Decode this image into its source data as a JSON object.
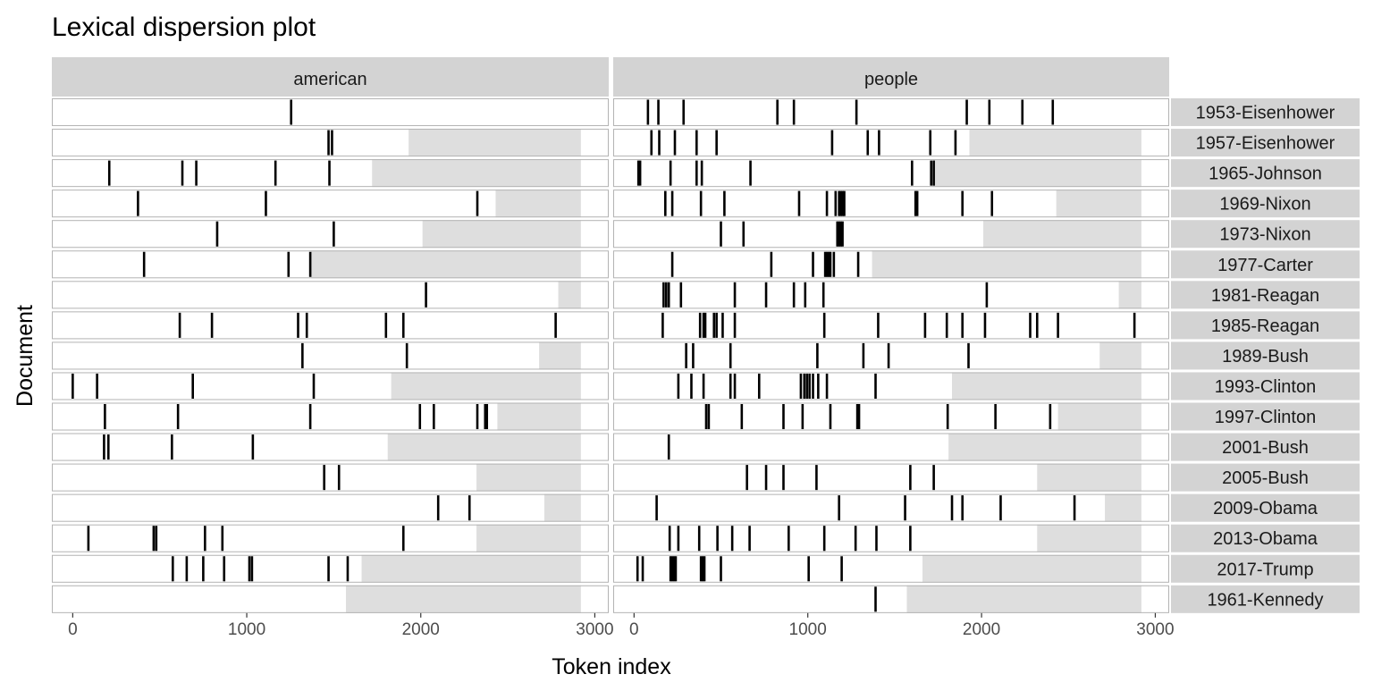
{
  "chart_data": {
    "type": "scatter",
    "title": "Lexical dispersion plot",
    "xlabel": "Token index",
    "ylabel": "Document",
    "xlim": [
      -120,
      3080
    ],
    "x_ticks": [
      0,
      1000,
      2000,
      3000
    ],
    "x_tick_labels": [
      "0",
      "1000",
      "2000",
      "3000"
    ],
    "facets": [
      "american",
      "people"
    ],
    "documents": [
      {
        "name": "1953-Eisenhower",
        "length": 2920
      },
      {
        "name": "1957-Eisenhower",
        "length": 1930
      },
      {
        "name": "1965-Johnson",
        "length": 1720
      },
      {
        "name": "1969-Nixon",
        "length": 2430
      },
      {
        "name": "1973-Nixon",
        "length": 2010
      },
      {
        "name": "1977-Carter",
        "length": 1370
      },
      {
        "name": "1981-Reagan",
        "length": 2790
      },
      {
        "name": "1985-Reagan",
        "length": 2920
      },
      {
        "name": "1989-Bush",
        "length": 2680
      },
      {
        "name": "1993-Clinton",
        "length": 1830
      },
      {
        "name": "1997-Clinton",
        "length": 2440
      },
      {
        "name": "2001-Bush",
        "length": 1810
      },
      {
        "name": "2005-Bush",
        "length": 2320
      },
      {
        "name": "2009-Obama",
        "length": 2710
      },
      {
        "name": "2013-Obama",
        "length": 2320
      },
      {
        "name": "2017-Trump",
        "length": 1660
      },
      {
        "name": "1961-Kennedy",
        "length": 1570
      }
    ],
    "occurrences": {
      "american": [
        [
          1255
        ],
        [
          1470,
          1490
        ],
        [
          210,
          630,
          710,
          1165,
          1475
        ],
        [
          375,
          1110,
          2325
        ],
        [
          830,
          1500
        ],
        [
          410,
          1240,
          1365
        ],
        [
          2030
        ],
        [
          615,
          800,
          1295,
          1345,
          1800,
          1900,
          2775
        ],
        [
          1320,
          1920
        ],
        [
          0,
          140,
          690,
          1385
        ],
        [
          185,
          605,
          1365,
          1995,
          2075,
          2325,
          2370,
          2380
        ],
        [
          180,
          205,
          570,
          1035
        ],
        [
          1445,
          1530
        ],
        [
          2100,
          2280
        ],
        [
          90,
          465,
          480,
          760,
          860,
          1900
        ],
        [
          575,
          655,
          750,
          870,
          1015,
          1030,
          1470,
          1580
        ],
        []
      ],
      "people": [
        [
          80,
          140,
          285,
          825,
          920,
          1280,
          1915,
          2045,
          2235,
          2410
        ],
        [
          100,
          145,
          235,
          360,
          475,
          1140,
          1345,
          1410,
          1705,
          1850
        ],
        [
          25,
          35,
          210,
          360,
          390,
          670,
          1600,
          1710,
          1725
        ],
        [
          180,
          220,
          385,
          520,
          950,
          1110,
          1160,
          1180,
          1190,
          1200,
          1210,
          1620,
          1630,
          1890,
          2060
        ],
        [
          500,
          630,
          1170,
          1180,
          1190,
          1200
        ],
        [
          220,
          790,
          1030,
          1100,
          1110,
          1120,
          1130,
          1150,
          1290
        ],
        [
          170,
          185,
          200,
          270,
          580,
          760,
          920,
          985,
          1090,
          2030
        ],
        [
          165,
          380,
          400,
          410,
          460,
          475,
          510,
          580,
          1095,
          1405,
          1675,
          1800,
          1890,
          2020,
          2280,
          2320,
          2440,
          2880
        ],
        [
          300,
          340,
          555,
          1055,
          1320,
          1465,
          1925
        ],
        [
          255,
          330,
          400,
          555,
          580,
          720,
          960,
          980,
          995,
          1010,
          1030,
          1060,
          1110,
          1390
        ],
        [
          415,
          430,
          620,
          860,
          970,
          1130,
          1285,
          1295,
          1805,
          2080,
          2395
        ],
        [
          200
        ],
        [
          650,
          760,
          860,
          1050,
          1590,
          1725
        ],
        [
          130,
          1180,
          1560,
          1830,
          1890,
          2110,
          2535
        ],
        [
          205,
          255,
          375,
          480,
          565,
          665,
          890,
          1095,
          1275,
          1395,
          1590
        ],
        [
          20,
          50,
          210,
          220,
          230,
          240,
          385,
          395,
          405,
          500,
          1005,
          1195
        ],
        [
          1390
        ]
      ]
    }
  }
}
